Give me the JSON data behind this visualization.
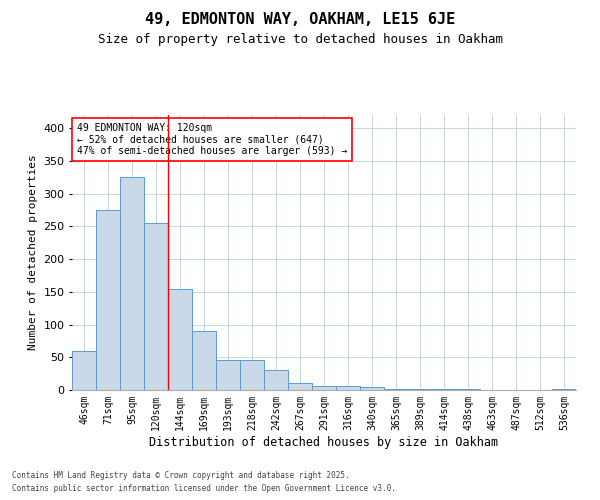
{
  "title1": "49, EDMONTON WAY, OAKHAM, LE15 6JE",
  "title2": "Size of property relative to detached houses in Oakham",
  "xlabel": "Distribution of detached houses by size in Oakham",
  "ylabel": "Number of detached properties",
  "categories": [
    "46sqm",
    "71sqm",
    "95sqm",
    "120sqm",
    "144sqm",
    "169sqm",
    "193sqm",
    "218sqm",
    "242sqm",
    "267sqm",
    "291sqm",
    "316sqm",
    "340sqm",
    "365sqm",
    "389sqm",
    "414sqm",
    "438sqm",
    "463sqm",
    "487sqm",
    "512sqm",
    "536sqm"
  ],
  "values": [
    60,
    275,
    325,
    255,
    155,
    90,
    46,
    46,
    30,
    10,
    6,
    6,
    5,
    2,
    1,
    1,
    1,
    0,
    0,
    0,
    1
  ],
  "bar_color": "#c9d9e8",
  "bar_edge_color": "#5b9bd5",
  "red_line_index": 3,
  "annotation_text": "49 EDMONTON WAY: 120sqm\n← 52% of detached houses are smaller (647)\n47% of semi-detached houses are larger (593) →",
  "annotation_box_color": "white",
  "annotation_box_edge_color": "red",
  "ylim": [
    0,
    420
  ],
  "yticks": [
    0,
    50,
    100,
    150,
    200,
    250,
    300,
    350,
    400
  ],
  "background_color": "white",
  "grid_color": "#c8d4e3",
  "footer1": "Contains HM Land Registry data © Crown copyright and database right 2025.",
  "footer2": "Contains public sector information licensed under the Open Government Licence v3.0.",
  "title_fontsize": 11,
  "subtitle_fontsize": 9,
  "tick_fontsize": 7,
  "ylabel_fontsize": 8,
  "xlabel_fontsize": 8.5,
  "annotation_fontsize": 7,
  "footer_fontsize": 5.5
}
